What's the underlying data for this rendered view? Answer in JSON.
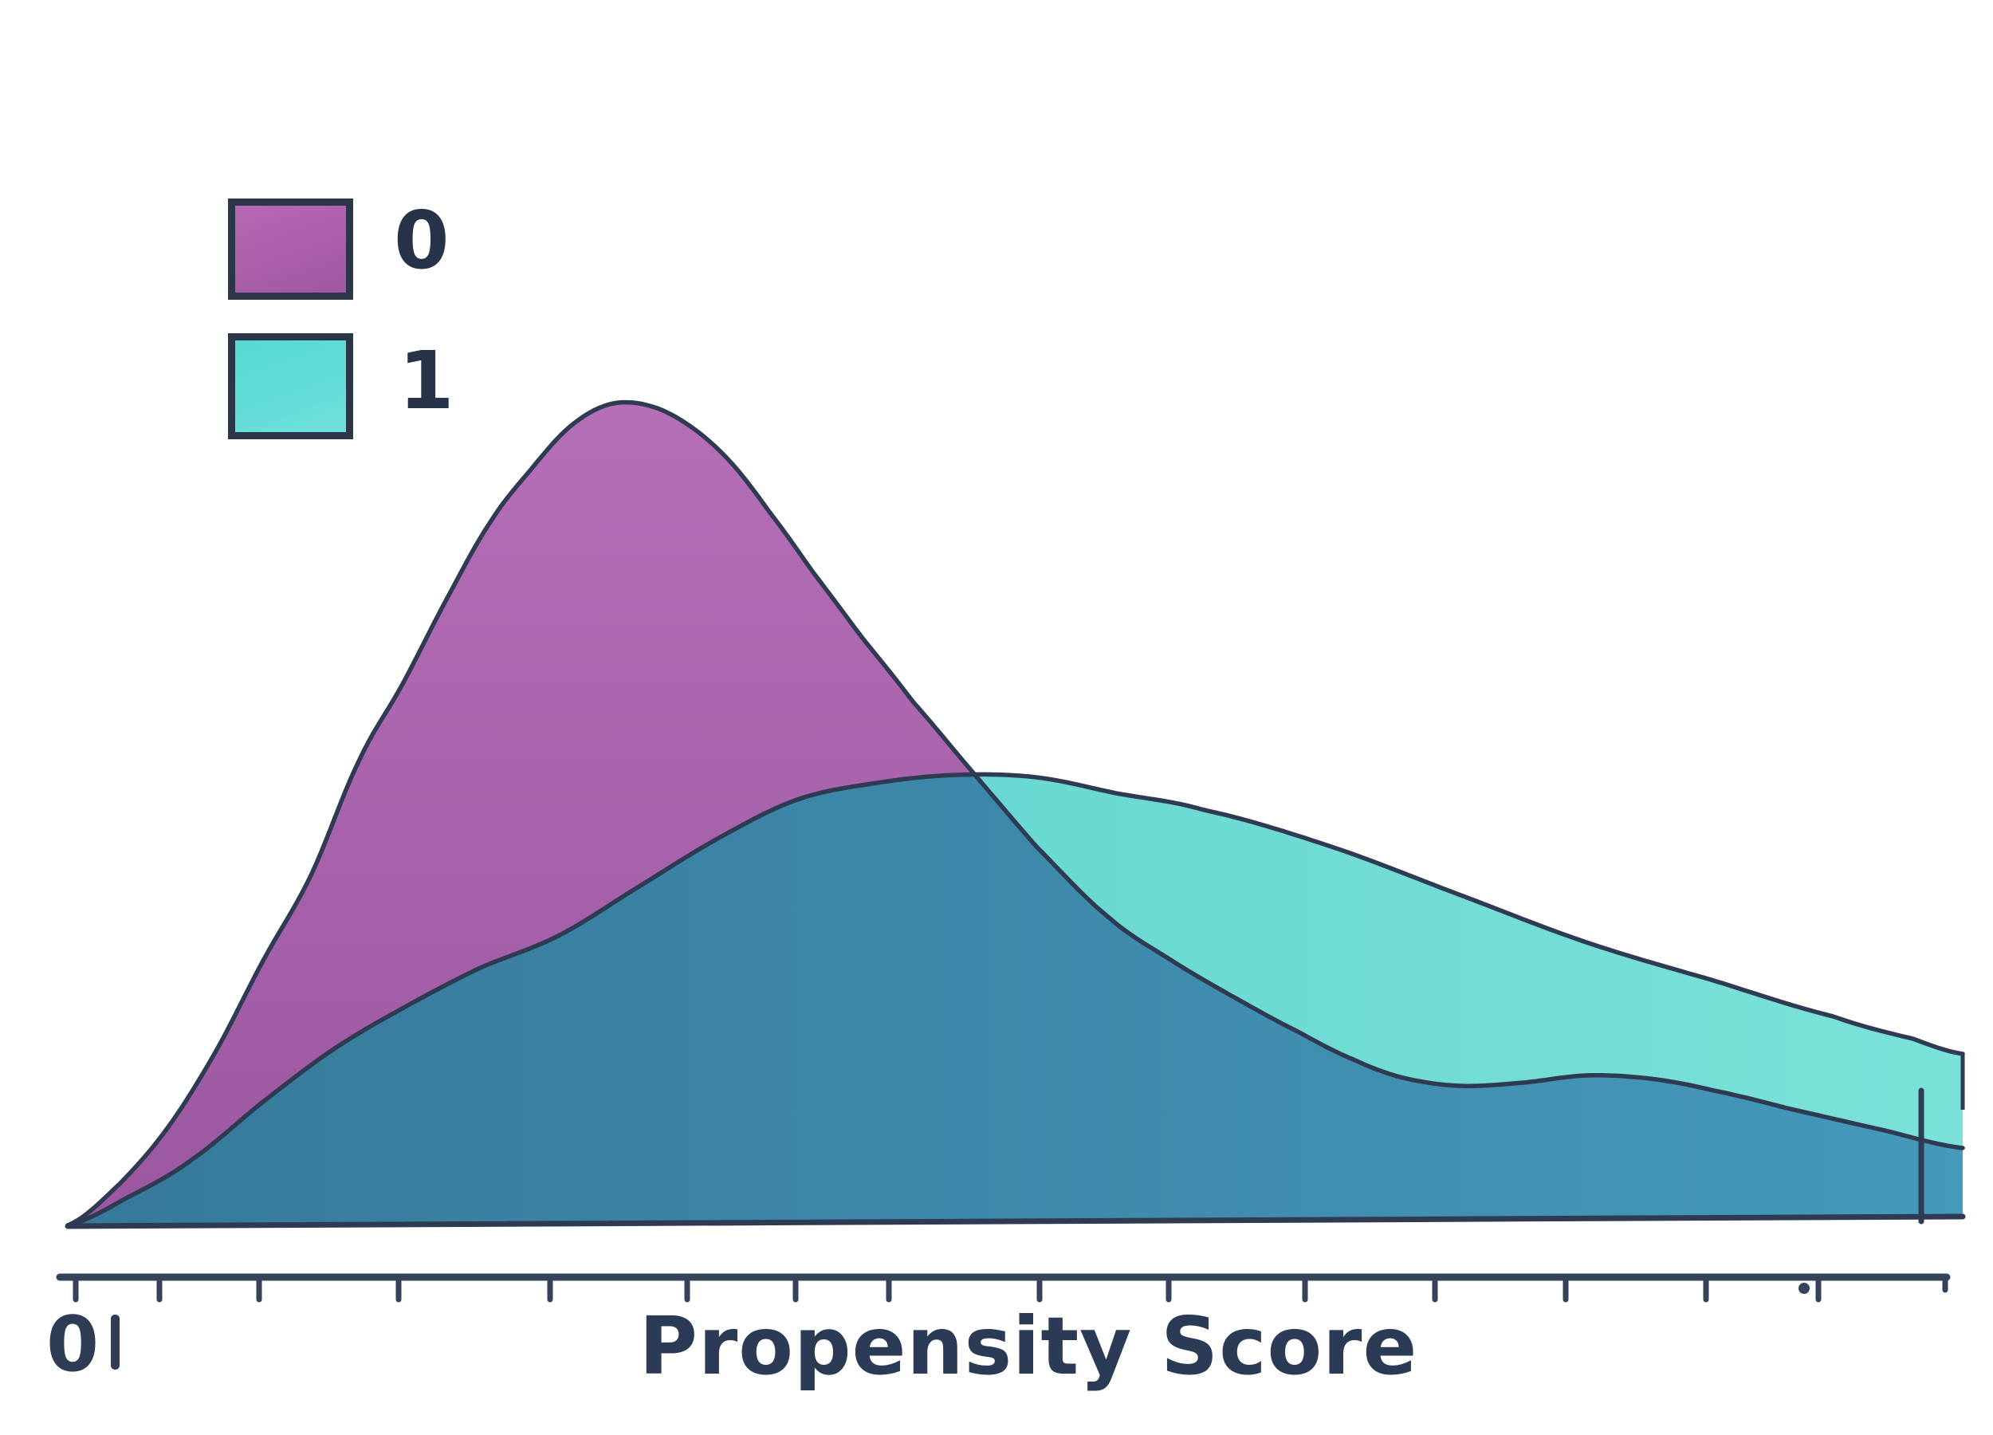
{
  "figure": {
    "kind": "kde-density-plot",
    "background": "#ffffff"
  },
  "legend": {
    "position": "upper-left",
    "items": [
      {
        "label": "0",
        "fill_light": "#b768b5",
        "fill_dark": "#a157a2",
        "border": "#2b3648"
      },
      {
        "label": "1",
        "fill_light": "#55d8d3",
        "fill_dark": "#6ee1d9",
        "border": "#2b3648"
      }
    ]
  },
  "axis": {
    "label": "Propensity Score",
    "origin_label": "0",
    "line_y": 1602,
    "line_x1": 75,
    "line_x2": 2442,
    "line_width": 9,
    "tick_len": 28,
    "ticks": [
      {
        "x": 95
      },
      {
        "x": 200
      },
      {
        "x": 325
      },
      {
        "x": 500
      },
      {
        "x": 690
      },
      {
        "x": 862
      },
      {
        "x": 998
      },
      {
        "x": 1115
      },
      {
        "x": 1304
      },
      {
        "x": 1466
      },
      {
        "x": 1637
      },
      {
        "x": 1800
      },
      {
        "x": 1964
      },
      {
        "x": 2140
      },
      {
        "x": 2281
      },
      {
        "x": 2440,
        "len": 16
      }
    ],
    "stray_dot": {
      "x": 2263,
      "y": 1616,
      "r": 7
    }
  },
  "colors": {
    "stroke": "#2e3b52",
    "axis": "#35435a",
    "text": "#2b3a55",
    "purple_top": "#b56fb7",
    "purple_bottom": "#9c57a1",
    "teal_left": "#59d0cb",
    "teal_right": "#7ae1d8",
    "overlap_left": "#36799a",
    "overlap_right": "#4599bb"
  },
  "chart_data": {
    "type": "area",
    "subtype": "kernel-density-estimate",
    "title": "",
    "xlabel": "Propensity Score",
    "ylabel": "",
    "grid": false,
    "legend_position": "upper-left",
    "x_axis_note": "only the origin tick is labeled ('0'); remaining ticks unlabeled",
    "series": [
      {
        "name": "0",
        "color": "#ad63ab",
        "x": [
          0.0,
          0.05,
          0.1,
          0.15,
          0.2,
          0.24,
          0.29,
          0.33,
          0.37,
          0.42,
          0.48,
          0.54,
          0.61,
          0.68,
          0.76,
          0.82,
          0.89,
          0.97,
          1.0
        ],
        "density": [
          0.0,
          0.12,
          0.32,
          0.56,
          0.77,
          0.92,
          1.0,
          0.97,
          0.86,
          0.71,
          0.55,
          0.37,
          0.25,
          0.19,
          0.17,
          0.18,
          0.16,
          0.11,
          0.09
        ]
      },
      {
        "name": "1",
        "color": "#5fdbd5",
        "x": [
          0.0,
          0.07,
          0.14,
          0.22,
          0.3,
          0.39,
          0.46,
          0.55,
          0.65,
          0.74,
          0.83,
          0.92,
          1.0
        ],
        "density": [
          0.0,
          0.07,
          0.19,
          0.29,
          0.41,
          0.52,
          0.55,
          0.53,
          0.47,
          0.4,
          0.32,
          0.25,
          0.21
        ]
      }
    ],
    "render": {
      "baseline_left": [
        85,
        1538
      ],
      "baseline_right": [
        2462,
        1526
      ],
      "right_clip_x": 2462,
      "purple_points": [
        [
          85,
          1537
        ],
        [
          150,
          1485
        ],
        [
          210,
          1415
        ],
        [
          270,
          1320
        ],
        [
          330,
          1205
        ],
        [
          390,
          1098
        ],
        [
          450,
          955
        ],
        [
          505,
          858
        ],
        [
          560,
          752
        ],
        [
          615,
          655
        ],
        [
          665,
          590
        ],
        [
          715,
          535
        ],
        [
          765,
          507
        ],
        [
          815,
          509
        ],
        [
          865,
          534
        ],
        [
          915,
          578
        ],
        [
          965,
          642
        ],
        [
          1020,
          718
        ],
        [
          1080,
          798
        ],
        [
          1145,
          880
        ],
        [
          1223,
          972
        ],
        [
          1300,
          1062
        ],
        [
          1390,
          1150
        ],
        [
          1470,
          1205
        ],
        [
          1550,
          1252
        ],
        [
          1630,
          1295
        ],
        [
          1700,
          1330
        ],
        [
          1760,
          1352
        ],
        [
          1830,
          1362
        ],
        [
          1910,
          1358
        ],
        [
          1990,
          1349
        ],
        [
          2070,
          1353
        ],
        [
          2150,
          1368
        ],
        [
          2250,
          1392
        ],
        [
          2360,
          1417
        ],
        [
          2462,
          1440
        ]
      ],
      "teal_points": [
        [
          85,
          1537
        ],
        [
          160,
          1502
        ],
        [
          240,
          1455
        ],
        [
          330,
          1382
        ],
        [
          420,
          1315
        ],
        [
          510,
          1262
        ],
        [
          600,
          1215
        ],
        [
          700,
          1174
        ],
        [
          800,
          1113
        ],
        [
          900,
          1052
        ],
        [
          1000,
          1003
        ],
        [
          1100,
          982
        ],
        [
          1200,
          972
        ],
        [
          1300,
          975
        ],
        [
          1400,
          995
        ],
        [
          1510,
          1016
        ],
        [
          1670,
          1062
        ],
        [
          1830,
          1122
        ],
        [
          1990,
          1182
        ],
        [
          2150,
          1230
        ],
        [
          2300,
          1275
        ],
        [
          2400,
          1303
        ],
        [
          2462,
          1322
        ]
      ],
      "rug_line": {
        "x": 2410,
        "y1": 1368,
        "y2": 1532,
        "width": 7
      },
      "right_edge_stroke": {
        "x": 2462,
        "y1": 1322,
        "y2": 1392
      }
    }
  }
}
